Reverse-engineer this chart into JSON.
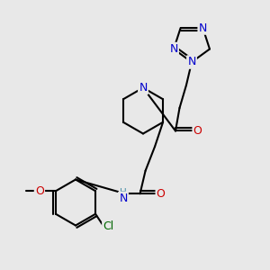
{
  "bg_color": "#e8e8e8",
  "bond_color": "#000000",
  "bond_width": 1.5,
  "atom_colors": {
    "C": "#000000",
    "N": "#0000cc",
    "O": "#cc0000",
    "Cl": "#006600",
    "H": "#4a8fa8"
  },
  "font_size_atom": 9,
  "font_size_small": 7.5,
  "figsize": [
    3.0,
    3.0
  ],
  "dpi": 100
}
